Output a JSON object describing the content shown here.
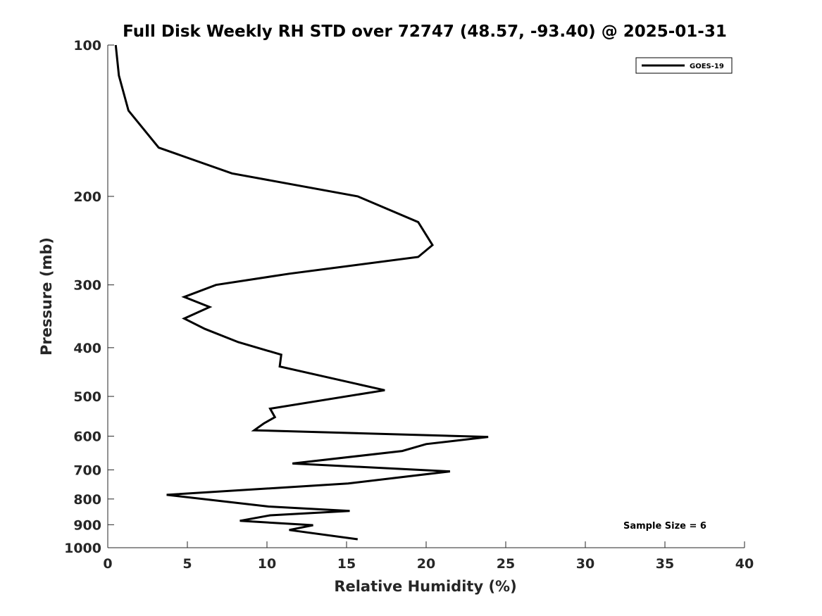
{
  "chart_data": {
    "type": "line",
    "title": "Full Disk Weekly RH STD over 72747 (48.57, -93.40) @ 2025-01-31",
    "xlabel": "Relative Humidity (%)",
    "ylabel": "Pressure (mb)",
    "xlim": [
      0,
      40
    ],
    "ylim": [
      100,
      1000
    ],
    "yscale": "log",
    "y_reversed": true,
    "xticks": [
      0,
      5,
      10,
      15,
      20,
      25,
      30,
      35,
      40
    ],
    "xtick_labels": [
      "0",
      "5",
      "10",
      "15",
      "20",
      "25",
      "30",
      "35",
      "40"
    ],
    "yticks": [
      100,
      200,
      300,
      400,
      500,
      600,
      700,
      800,
      900,
      1000
    ],
    "ytick_labels": [
      "100",
      "200",
      "300",
      "400",
      "500",
      "600",
      "700",
      "800",
      "900",
      "1000"
    ],
    "grid": false,
    "legend_position": "top-right",
    "annotation": "Sample Size = 6",
    "series": [
      {
        "name": "GOES-19",
        "color": "#000000",
        "points": [
          {
            "rh": 0.5,
            "p": 100
          },
          {
            "rh": 0.7,
            "p": 115
          },
          {
            "rh": 1.3,
            "p": 135
          },
          {
            "rh": 3.2,
            "p": 160
          },
          {
            "rh": 7.8,
            "p": 180
          },
          {
            "rh": 15.7,
            "p": 200
          },
          {
            "rh": 19.5,
            "p": 225
          },
          {
            "rh": 20.4,
            "p": 250
          },
          {
            "rh": 19.5,
            "p": 264
          },
          {
            "rh": 11.4,
            "p": 285
          },
          {
            "rh": 6.8,
            "p": 300
          },
          {
            "rh": 4.8,
            "p": 317
          },
          {
            "rh": 6.4,
            "p": 332
          },
          {
            "rh": 4.8,
            "p": 350
          },
          {
            "rh": 6.1,
            "p": 367
          },
          {
            "rh": 8.2,
            "p": 390
          },
          {
            "rh": 10.9,
            "p": 413
          },
          {
            "rh": 10.8,
            "p": 436
          },
          {
            "rh": 17.4,
            "p": 486
          },
          {
            "rh": 10.2,
            "p": 529
          },
          {
            "rh": 10.5,
            "p": 550
          },
          {
            "rh": 9.8,
            "p": 566
          },
          {
            "rh": 9.2,
            "p": 584
          },
          {
            "rh": 23.9,
            "p": 602
          },
          {
            "rh": 20.0,
            "p": 622
          },
          {
            "rh": 18.5,
            "p": 642
          },
          {
            "rh": 11.6,
            "p": 680
          },
          {
            "rh": 21.5,
            "p": 705
          },
          {
            "rh": 15.1,
            "p": 745
          },
          {
            "rh": 3.7,
            "p": 785
          },
          {
            "rh": 10.1,
            "p": 828
          },
          {
            "rh": 15.2,
            "p": 845
          },
          {
            "rh": 10.2,
            "p": 862
          },
          {
            "rh": 8.3,
            "p": 884
          },
          {
            "rh": 12.9,
            "p": 902
          },
          {
            "rh": 11.4,
            "p": 922
          },
          {
            "rh": 15.7,
            "p": 962
          }
        ]
      }
    ]
  }
}
